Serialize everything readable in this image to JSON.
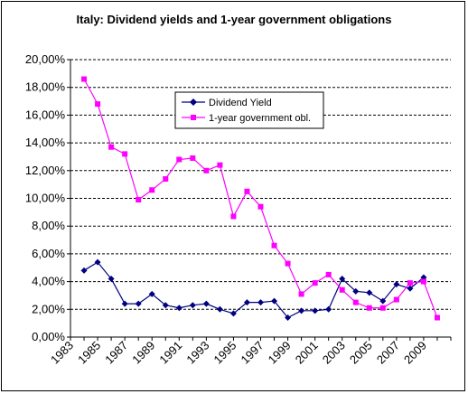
{
  "chart_data": {
    "type": "line",
    "title": "Italy: Dividend yields and 1-year government obligations",
    "xlabel": "",
    "ylabel": "",
    "x": [
      1984,
      1985,
      1986,
      1987,
      1988,
      1989,
      1990,
      1991,
      1992,
      1993,
      1994,
      1995,
      1996,
      1997,
      1998,
      1999,
      2000,
      2001,
      2002,
      2003,
      2004,
      2005,
      2006,
      2007,
      2008,
      2009,
      2010
    ],
    "xlim": [
      1983,
      2011
    ],
    "ylim": [
      0,
      0.2
    ],
    "y_tick_labels": [
      "0,00%",
      "2,00%",
      "4,00%",
      "6,00%",
      "8,00%",
      "10,00%",
      "12,00%",
      "14,00%",
      "16,00%",
      "18,00%",
      "20,00%"
    ],
    "x_tick_labels": [
      "1983",
      "1985",
      "1987",
      "1989",
      "1991",
      "1993",
      "1995",
      "1997",
      "1999",
      "2001",
      "2003",
      "2005",
      "2007",
      "2009"
    ],
    "grid": "horizontal dashed",
    "legend_position": "upper-middle",
    "series": [
      {
        "name": "Dividend Yield",
        "color": "#000080",
        "marker": "diamond",
        "values": [
          0.048,
          0.054,
          0.042,
          0.024,
          0.024,
          0.031,
          0.023,
          0.021,
          0.023,
          0.024,
          0.02,
          0.017,
          0.025,
          0.025,
          0.026,
          0.014,
          0.019,
          0.019,
          0.02,
          0.042,
          0.033,
          0.032,
          0.026,
          0.038,
          0.035,
          0.043,
          null
        ]
      },
      {
        "name": "1-year government obl.",
        "color": "#ff00ff",
        "marker": "square",
        "values": [
          0.186,
          0.168,
          0.137,
          0.132,
          0.099,
          0.106,
          0.114,
          0.128,
          0.129,
          0.12,
          0.124,
          0.087,
          0.105,
          0.094,
          0.066,
          0.053,
          0.031,
          0.039,
          0.045,
          0.034,
          0.025,
          0.021,
          0.021,
          0.027,
          0.039,
          0.04,
          0.014
        ]
      }
    ]
  }
}
